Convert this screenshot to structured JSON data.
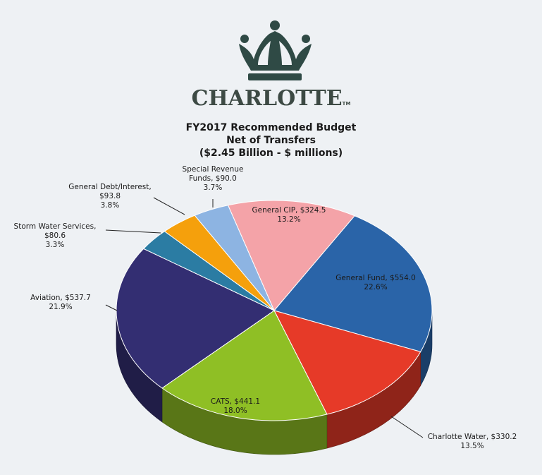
{
  "logo": {
    "text": "CHARLOTTE",
    "trademark": "TM",
    "icon": "crown-icon",
    "color": "#2f4a45"
  },
  "chart_data": {
    "type": "pie",
    "title": [
      "FY2017 Recommended Budget",
      "Net of Transfers",
      "($2.45 Billion - $ millions)"
    ],
    "unit": "$ millions",
    "total_label": "$2.45 Billion",
    "slices": [
      {
        "label": "General CIP, $324.5",
        "name": "General CIP",
        "value": 324.5,
        "pct": "13.2%",
        "color": "#f4a3a8"
      },
      {
        "label": "General Fund, $554.0",
        "name": "General Fund",
        "value": 554.0,
        "pct": "22.6%",
        "color": "#2a64a8"
      },
      {
        "label": "Charlotte Water, $330.2",
        "name": "Charlotte Water",
        "value": 330.2,
        "pct": "13.5%",
        "color": "#e63a28"
      },
      {
        "label": "CATS, $441.1",
        "name": "CATS",
        "value": 441.1,
        "pct": "18.0%",
        "color": "#8fbf25"
      },
      {
        "label": "Aviation, $537.7",
        "name": "Aviation",
        "value": 537.7,
        "pct": "21.9%",
        "color": "#332e72"
      },
      {
        "label": "Storm Water Services, $80.6",
        "name": "Storm Water Services",
        "value": 80.6,
        "pct": "3.3%",
        "color": "#2b7ca3"
      },
      {
        "label": "General Debt/Interest, $93.8",
        "name": "General Debt/Interest",
        "value": 93.8,
        "pct": "3.8%",
        "color": "#f5a00c"
      },
      {
        "label": "Special Revenue Funds, $90.0",
        "name": "Special Revenue Funds",
        "value": 90.0,
        "pct": "3.7%",
        "color": "#8db4e2"
      }
    ],
    "slice_label_lines": {
      "General CIP": [
        "General CIP, $324.5",
        "13.2%"
      ],
      "General Fund": [
        "General Fund, $554.0",
        "22.6%"
      ],
      "Charlotte Water": [
        "Charlotte Water, $330.2",
        "13.5%"
      ],
      "CATS": [
        "CATS, $441.1",
        "18.0%"
      ],
      "Aviation": [
        "Aviation, $537.7",
        "21.9%"
      ],
      "Storm Water Services": [
        "Storm Water Services,",
        "$80.6",
        "3.3%"
      ],
      "General Debt/Interest": [
        "General Debt/Interest,",
        "$93.8",
        "3.8%"
      ],
      "Special Revenue Funds": [
        "Special Revenue",
        "Funds, $90.0",
        "3.7%"
      ]
    }
  }
}
